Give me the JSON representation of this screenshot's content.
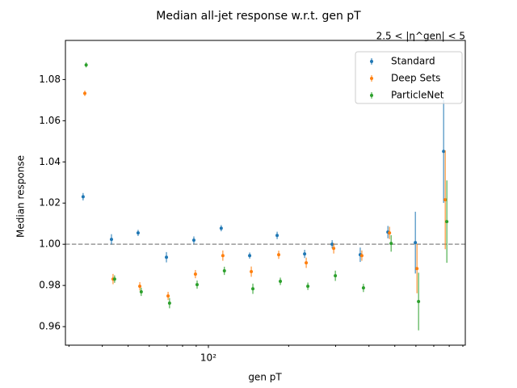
{
  "chart_data": {
    "type": "errorbar",
    "title": "Median all-jet response w.r.t. gen pT",
    "annotation": "2.5 < |η^gen| < 5",
    "x_label": "gen pT",
    "y_label": "Median response",
    "log_x": true,
    "xlim": [
      29.1,
      919
    ],
    "xticks": [
      {
        "value": 100,
        "label": "10²"
      }
    ],
    "xminorticks": [
      30,
      40,
      50,
      60,
      70,
      80,
      90,
      200,
      300,
      400,
      500,
      600,
      700,
      800,
      900
    ],
    "ylim": [
      0.951,
      1.099
    ],
    "yticks": [
      0.96,
      0.98,
      {
        "value": 1,
        "label": "1.00"
      },
      1.02,
      1.04,
      1.06,
      1.08
    ],
    "hline": 1,
    "legend_loc": "upper right",
    "series": [
      {
        "name": "Standard",
        "color": "#1f77b4",
        "x": [
          33.9,
          43.3,
          54.5,
          69.6,
          88.2,
          111.7,
          142.8,
          181,
          229.5,
          291,
          371,
          471,
          597,
          762
        ],
        "values": [
          1.0231,
          1.0024,
          1.0055,
          0.9937,
          1.002,
          1.0078,
          0.9945,
          1.0043,
          0.9953,
          1.0,
          0.9949,
          1.0059,
          1.0008,
          1.0451
        ],
        "errors": [
          0.0018,
          0.0025,
          0.0015,
          0.0025,
          0.0018,
          0.0015,
          0.0015,
          0.0018,
          0.002,
          0.002,
          0.0035,
          0.003,
          0.015,
          0.025
        ]
      },
      {
        "name": "Deep Sets",
        "color": "#ff7f0e",
        "x": [
          34.4,
          43.9,
          55.3,
          70.6,
          89.4,
          113.3,
          144.8,
          183.5,
          232.7,
          295,
          376.2,
          477.6,
          605.4,
          772.7
        ],
        "values": [
          1.0733,
          0.9831,
          0.9796,
          0.9749,
          0.9855,
          0.9945,
          0.9867,
          0.9949,
          0.991,
          0.998,
          0.9945,
          1.0055,
          0.9882,
          1.0216
        ],
        "errors": [
          0.0013,
          0.0025,
          0.002,
          0.002,
          0.002,
          0.0025,
          0.0025,
          0.002,
          0.0025,
          0.0025,
          0.0025,
          0.003,
          0.012,
          0.024
        ]
      },
      {
        "name": "ParticleNet",
        "color": "#2ca02c",
        "x": [
          34.8,
          44.5,
          56,
          71.5,
          90.7,
          114.8,
          146.8,
          186.1,
          236,
          299.2,
          381.4,
          484.3,
          613.8,
          783.5
        ],
        "values": [
          1.0871,
          0.9831,
          0.9769,
          0.9714,
          0.9804,
          0.9871,
          0.9784,
          0.982,
          0.9796,
          0.9847,
          0.9788,
          1.0004,
          0.9722,
          1.011
        ],
        "errors": [
          0.0012,
          0.0018,
          0.002,
          0.0025,
          0.002,
          0.002,
          0.0025,
          0.0018,
          0.0018,
          0.0025,
          0.002,
          0.004,
          0.014,
          0.02
        ]
      }
    ]
  }
}
